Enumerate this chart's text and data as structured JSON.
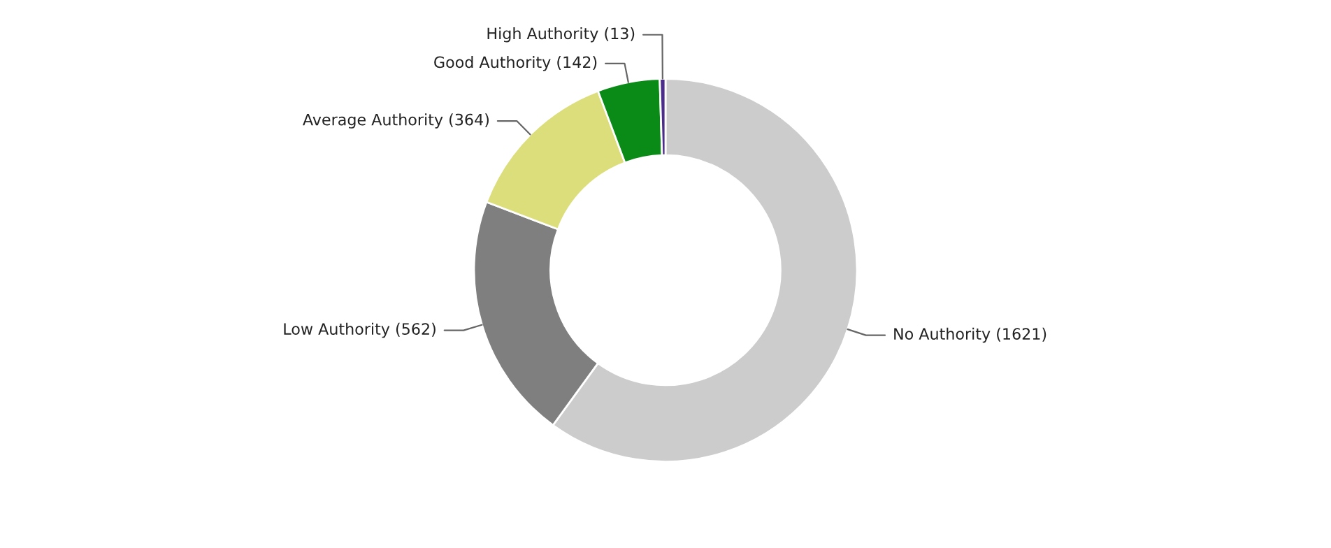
{
  "chart_data": {
    "type": "donut",
    "categories": [
      "No Authority",
      "Low Authority",
      "Average Authority",
      "Good Authority",
      "High Authority"
    ],
    "values": [
      1621,
      562,
      364,
      142,
      13
    ],
    "colors": [
      "#cccccc",
      "#7f7f7f",
      "#dbde7a",
      "#0a8a16",
      "#4b2c8a"
    ],
    "value_labels": [
      "(1621)",
      "(562)",
      "(364)",
      "(142)",
      "(13)"
    ],
    "legend": false
  }
}
